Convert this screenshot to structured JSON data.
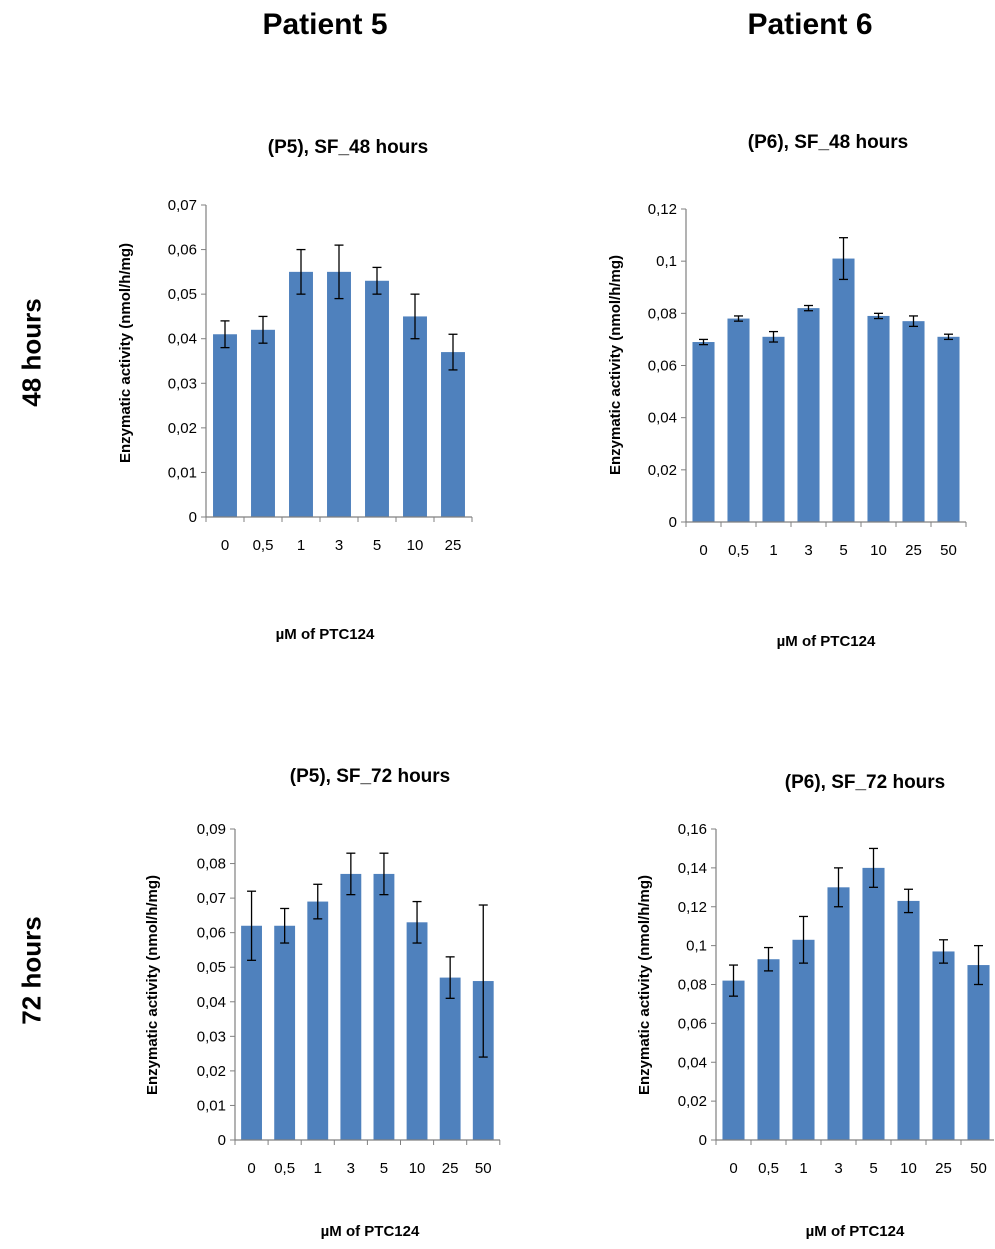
{
  "headers": {
    "col1": "Patient 5",
    "col2": "Patient 6",
    "row1": "48 hours",
    "row2": "72 hours"
  },
  "colors": {
    "bar": "#4F81BD",
    "axis": "#808080",
    "errorbar": "#000000"
  },
  "chart_data": [
    {
      "type": "bar",
      "title": "(P5), SF_48 hours",
      "xlabel": "µM of PTC124",
      "ylabel": "Enzymatic activity (nmol/h/mg)",
      "categories": [
        "0",
        "0,5",
        "1",
        "3",
        "5",
        "10",
        "25"
      ],
      "values": [
        0.041,
        0.042,
        0.055,
        0.055,
        0.053,
        0.045,
        0.037
      ],
      "errors": [
        0.003,
        0.003,
        0.005,
        0.006,
        0.003,
        0.005,
        0.004
      ],
      "yticks": [
        "0",
        "0,01",
        "0,02",
        "0,03",
        "0,04",
        "0,05",
        "0,06",
        "0,07"
      ],
      "ylim": [
        0,
        0.07
      ],
      "grid": false,
      "legend": "none"
    },
    {
      "type": "bar",
      "title": "(P6), SF_48 hours",
      "xlabel": "µM of PTC124",
      "ylabel": "Enzymatic activity (nmol/h/mg)",
      "categories": [
        "0",
        "0,5",
        "1",
        "3",
        "5",
        "10",
        "25",
        "50"
      ],
      "values": [
        0.069,
        0.078,
        0.071,
        0.082,
        0.101,
        0.079,
        0.077,
        0.071
      ],
      "errors": [
        0.001,
        0.001,
        0.002,
        0.001,
        0.008,
        0.001,
        0.002,
        0.001
      ],
      "yticks": [
        "0",
        "0,02",
        "0,04",
        "0,06",
        "0,08",
        "0,1",
        "0,12"
      ],
      "ylim": [
        0,
        0.12
      ],
      "grid": false,
      "legend": "none"
    },
    {
      "type": "bar",
      "title": "(P5), SF_72 hours",
      "xlabel": "µM of PTC124",
      "ylabel": "Enzymatic activity (nmol/h/mg)",
      "categories": [
        "0",
        "0,5",
        "1",
        "3",
        "5",
        "10",
        "25",
        "50"
      ],
      "values": [
        0.062,
        0.062,
        0.069,
        0.077,
        0.077,
        0.063,
        0.047,
        0.046
      ],
      "errors": [
        0.01,
        0.005,
        0.005,
        0.006,
        0.006,
        0.006,
        0.006,
        0.022
      ],
      "yticks": [
        "0",
        "0,01",
        "0,02",
        "0,03",
        "0,04",
        "0,05",
        "0,06",
        "0,07",
        "0,08",
        "0,09"
      ],
      "ylim": [
        0,
        0.09
      ],
      "grid": false,
      "legend": "none"
    },
    {
      "type": "bar",
      "title": "(P6), SF_72 hours",
      "xlabel": "µM of PTC124",
      "ylabel": "Enzymatic activity (nmol/h/mg)",
      "categories": [
        "0",
        "0,5",
        "1",
        "3",
        "5",
        "10",
        "25",
        "50"
      ],
      "values": [
        0.082,
        0.093,
        0.103,
        0.13,
        0.14,
        0.123,
        0.097,
        0.09
      ],
      "errors": [
        0.008,
        0.006,
        0.012,
        0.01,
        0.01,
        0.006,
        0.006,
        0.01
      ],
      "yticks": [
        "0",
        "0,02",
        "0,04",
        "0,06",
        "0,08",
        "0,1",
        "0,12",
        "0,14",
        "0,16"
      ],
      "ylim": [
        0,
        0.16
      ],
      "grid": false,
      "legend": "none"
    }
  ]
}
